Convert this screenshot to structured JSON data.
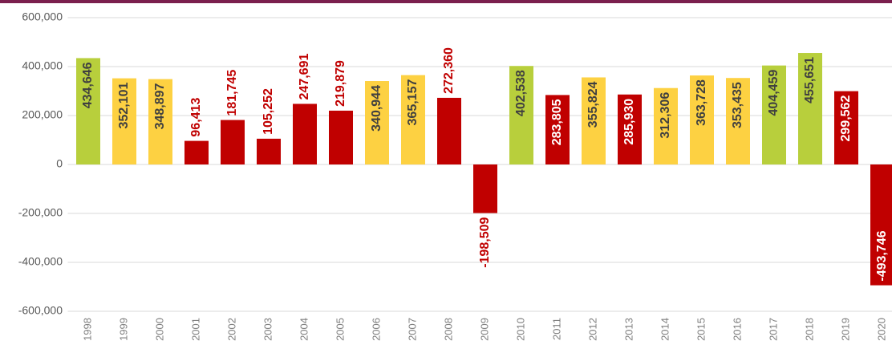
{
  "chart_data": {
    "type": "bar",
    "categories": [
      "1998",
      "1999",
      "2000",
      "2001",
      "2002",
      "2003",
      "2004",
      "2005",
      "2006",
      "2007",
      "2008",
      "2009",
      "2010",
      "2011",
      "2012",
      "2013",
      "2014",
      "2015",
      "2016",
      "2017",
      "2018",
      "2019",
      "2020"
    ],
    "values": [
      434646,
      352101,
      348897,
      96413,
      181745,
      105252,
      247691,
      219879,
      340944,
      365157,
      272360,
      -198509,
      402538,
      283805,
      355824,
      285930,
      312306,
      363728,
      353435,
      404459,
      455651,
      299562,
      -493746
    ],
    "value_labels": [
      "434,646",
      "352,101",
      "348,897",
      "96,413",
      "181,745",
      "105,252",
      "247,691",
      "219,879",
      "340,944",
      "365,157",
      "272,360",
      "-198,509",
      "402,538",
      "283,805",
      "355,824",
      "285,930",
      "312,306",
      "363,728",
      "353,435",
      "404,459",
      "455,651",
      "299,562",
      "-493,746"
    ],
    "colors": [
      "#b8cf3c",
      "#fdd142",
      "#fdd142",
      "#c00000",
      "#c00000",
      "#c00000",
      "#c00000",
      "#c00000",
      "#fdd142",
      "#fdd142",
      "#c00000",
      "#c00000",
      "#b8cf3c",
      "#c00000",
      "#fdd142",
      "#c00000",
      "#fdd142",
      "#fdd142",
      "#fdd142",
      "#b8cf3c",
      "#b8cf3c",
      "#c00000",
      "#c00000"
    ],
    "ylim": [
      -600000,
      600000
    ],
    "yticks": [
      {
        "value": -600000,
        "label": "-600,000"
      },
      {
        "value": -400000,
        "label": "-400,000"
      },
      {
        "value": -200000,
        "label": "-200,000"
      },
      0,
      {
        "value": 200000,
        "label": "200,000"
      },
      {
        "value": 400000,
        "label": "400,000"
      },
      {
        "value": 600000,
        "label": "600,000"
      }
    ],
    "grid": true
  }
}
